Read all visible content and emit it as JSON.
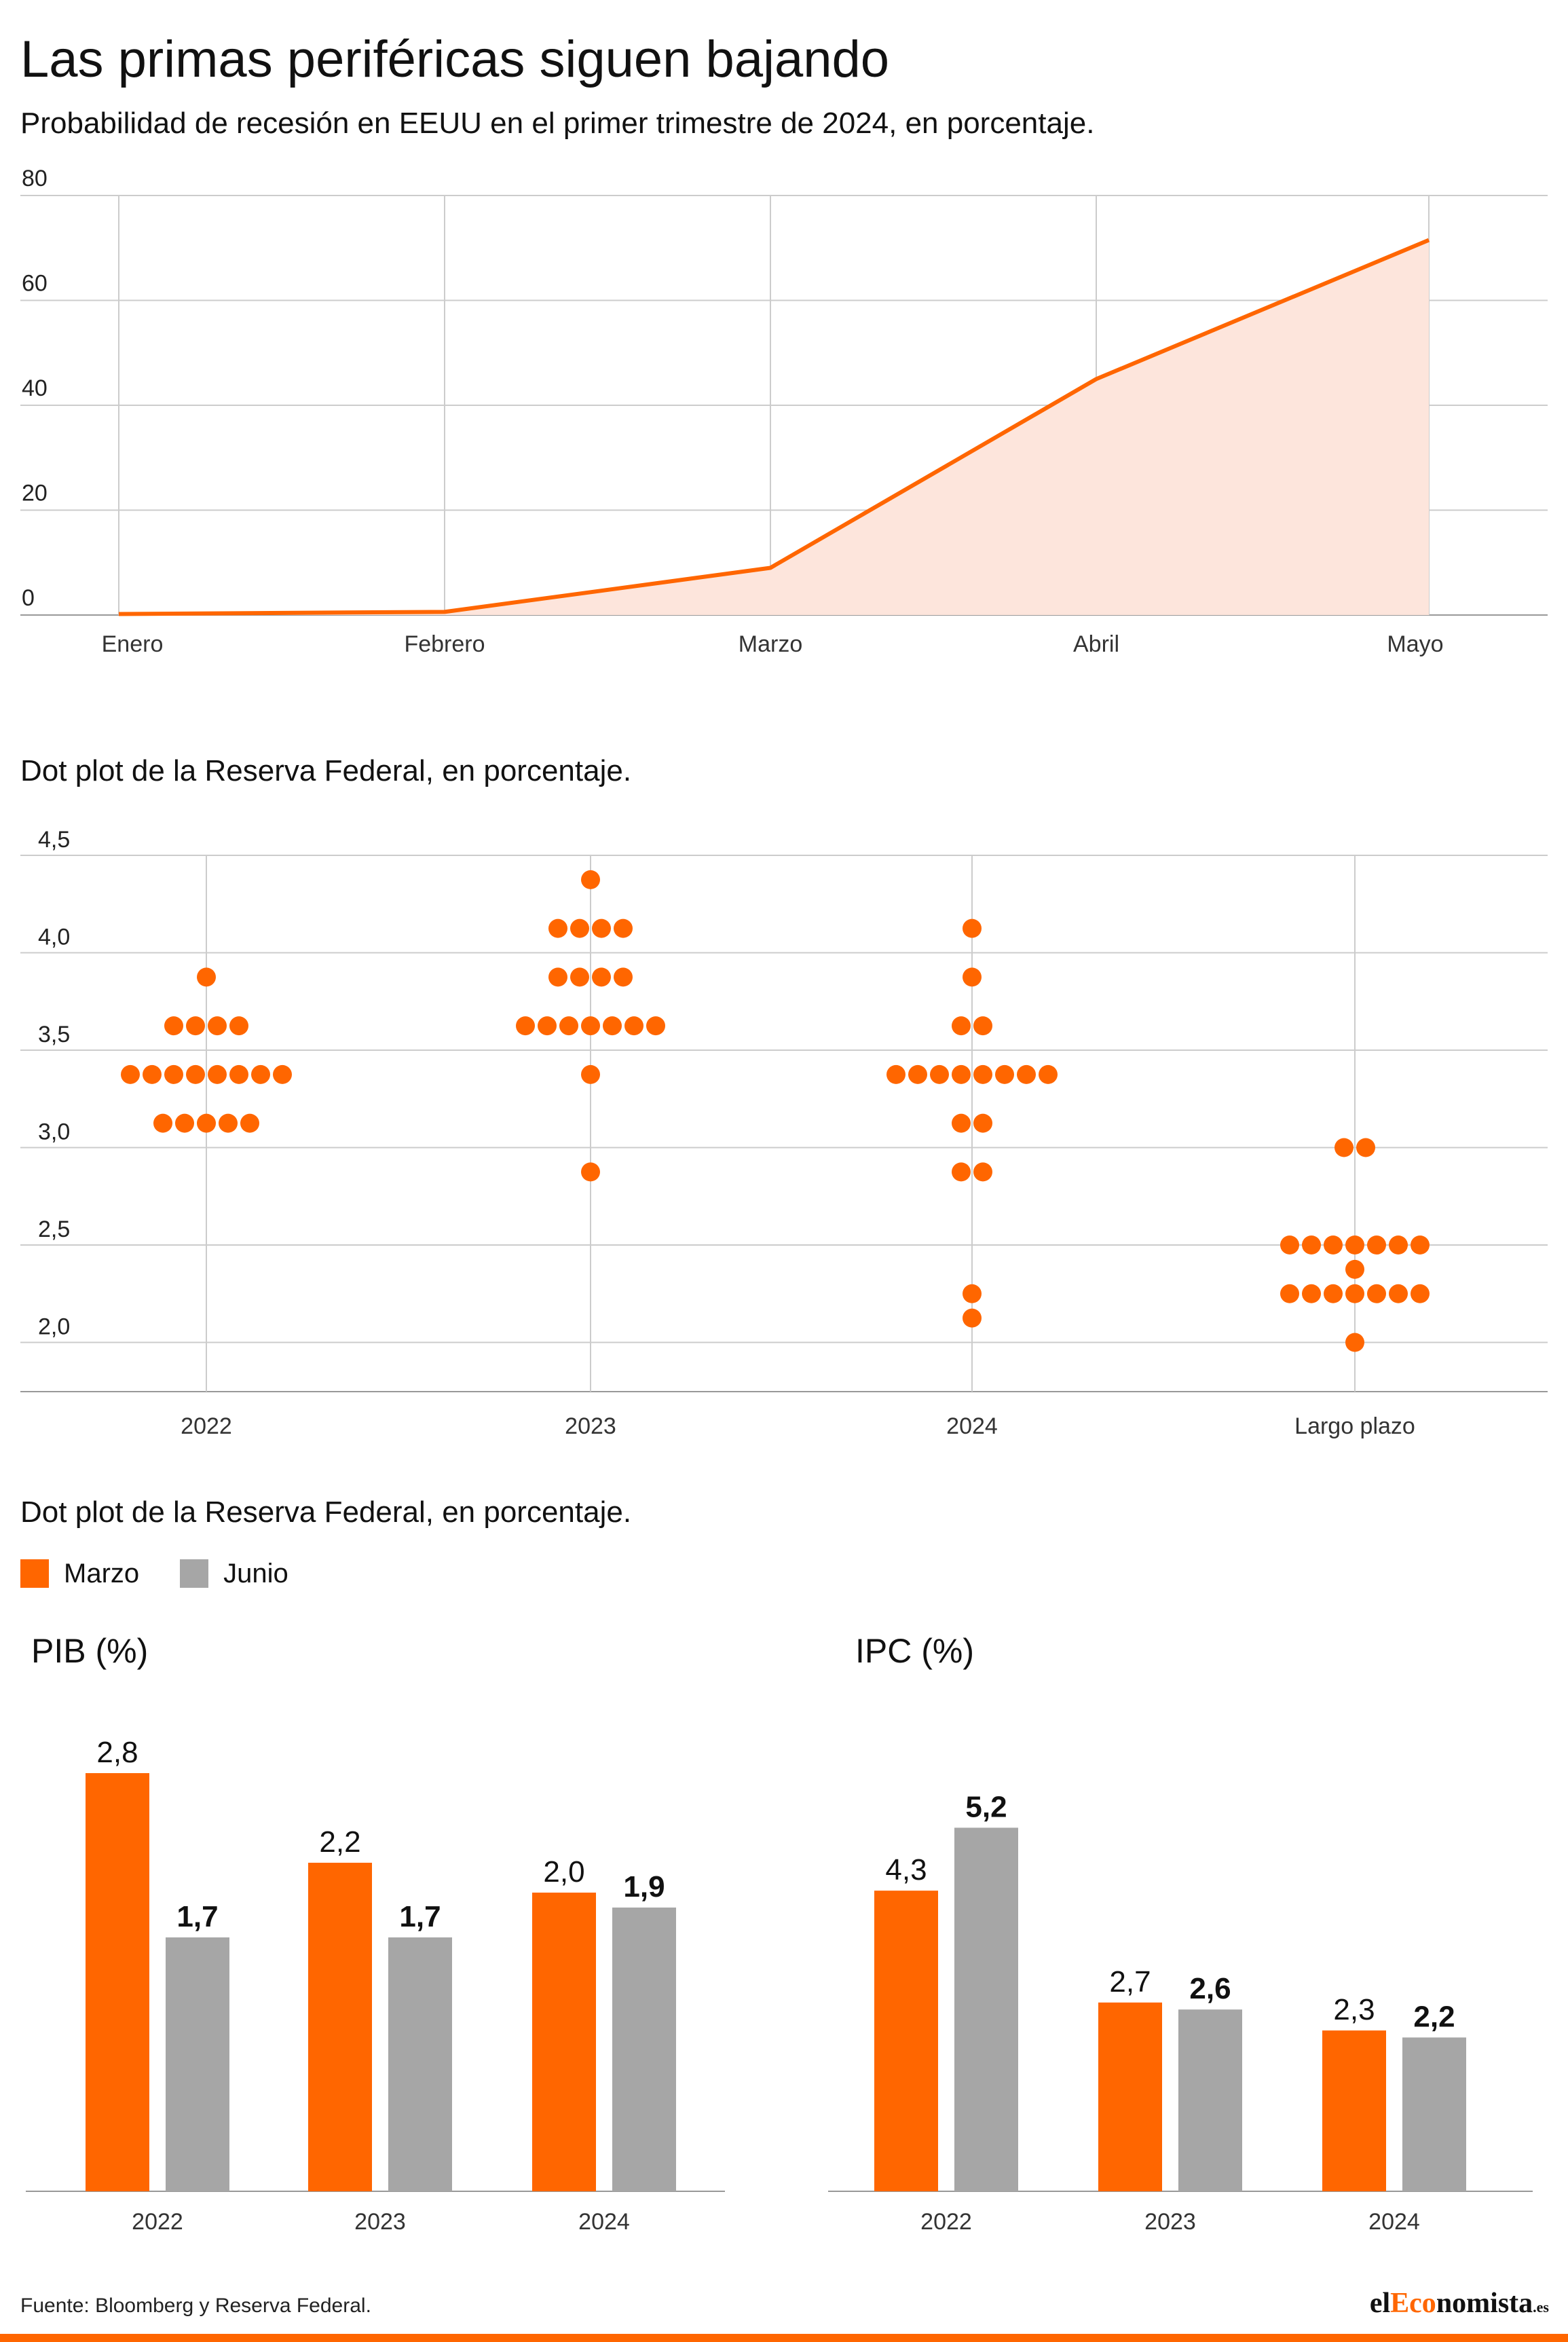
{
  "header": {
    "title": "Las primas periféricas siguen bajando",
    "subtitle_line": "Probabilidad de recesión en EEUU en el primer trimestre de 2024, en porcentaje."
  },
  "dot_section": {
    "subtitle": "Dot plot de la Reserva Federal, en porcentaje."
  },
  "bar_section": {
    "subtitle": "Dot plot de la Reserva Federal, en porcentaje.",
    "legend": [
      {
        "label": "Marzo",
        "color": "#ff6600"
      },
      {
        "label": "Junio",
        "color": "#a6a6a6"
      }
    ],
    "pib_title": "PIB (%)",
    "ipc_title": "IPC (%)"
  },
  "colors": {
    "accent": "#ff6600",
    "area_fill": "#fde5dc",
    "grey_bar": "#a6a6a6",
    "grid": "#cccccc"
  },
  "footer": {
    "source": "Fuente: Bloomberg y Reserva Federal.",
    "logo_prefix": "el",
    "logo_accent": "Eco",
    "logo_rest": "nomista",
    "logo_tld": ".es"
  },
  "chart_data": [
    {
      "type": "area",
      "categories": [
        "Enero",
        "Febrero",
        "Marzo",
        "Abril",
        "Mayo"
      ],
      "values": [
        0.2,
        0.6,
        9,
        45,
        71.5
      ],
      "ylim": [
        0,
        80
      ],
      "yticks": [
        "80",
        "60",
        "40",
        "20",
        "0"
      ],
      "ytick_values": [
        80,
        60,
        40,
        20,
        0
      ],
      "grid": true
    },
    {
      "type": "scatter",
      "categories": [
        "2022",
        "2023",
        "2024",
        "Largo plazo"
      ],
      "ylim": [
        1.95,
        4.5
      ],
      "yticks": [
        "4,5",
        "4,0",
        "3,5",
        "3,0",
        "2,5",
        "2,0"
      ],
      "ytick_values": [
        4.5,
        4.0,
        3.5,
        3.0,
        2.5,
        2.0
      ],
      "dots": [
        {
          "category": "2022",
          "groups": [
            [
              3.875,
              1
            ],
            [
              3.625,
              4
            ],
            [
              3.375,
              8
            ],
            [
              3.125,
              5
            ]
          ]
        },
        {
          "category": "2023",
          "groups": [
            [
              4.375,
              1
            ],
            [
              4.125,
              4
            ],
            [
              3.875,
              4
            ],
            [
              3.625,
              7
            ],
            [
              3.375,
              1
            ],
            [
              2.875,
              1
            ]
          ]
        },
        {
          "category": "2024",
          "groups": [
            [
              4.125,
              1
            ],
            [
              3.875,
              1
            ],
            [
              3.625,
              2
            ],
            [
              3.375,
              8
            ],
            [
              3.125,
              2
            ],
            [
              2.875,
              2
            ],
            [
              2.25,
              1
            ],
            [
              2.125,
              1
            ]
          ]
        },
        {
          "category": "Largo plazo",
          "groups": [
            [
              3.0,
              2
            ],
            [
              2.5,
              7
            ],
            [
              2.375,
              1
            ],
            [
              2.25,
              7
            ],
            [
              2.0,
              1
            ]
          ]
        }
      ],
      "grid": true
    },
    {
      "type": "bar",
      "title": "PIB (%)",
      "categories": [
        "2022",
        "2023",
        "2024"
      ],
      "series": [
        {
          "name": "Marzo",
          "values": [
            2.8,
            2.2,
            2.0
          ]
        },
        {
          "name": "Junio",
          "values": [
            1.7,
            1.7,
            1.9
          ]
        }
      ],
      "labels": [
        [
          "2,8",
          "2,2",
          "2,0"
        ],
        [
          "1,7",
          "1,7",
          "1,9"
        ]
      ]
    },
    {
      "type": "bar",
      "title": "IPC (%)",
      "categories": [
        "2022",
        "2023",
        "2024"
      ],
      "series": [
        {
          "name": "Marzo",
          "values": [
            4.3,
            2.7,
            2.3
          ]
        },
        {
          "name": "Junio",
          "values": [
            5.2,
            2.6,
            2.2
          ]
        }
      ],
      "labels": [
        [
          "4,3",
          "2,7",
          "2,3"
        ],
        [
          "5,2",
          "2,6",
          "2,2"
        ]
      ]
    }
  ]
}
